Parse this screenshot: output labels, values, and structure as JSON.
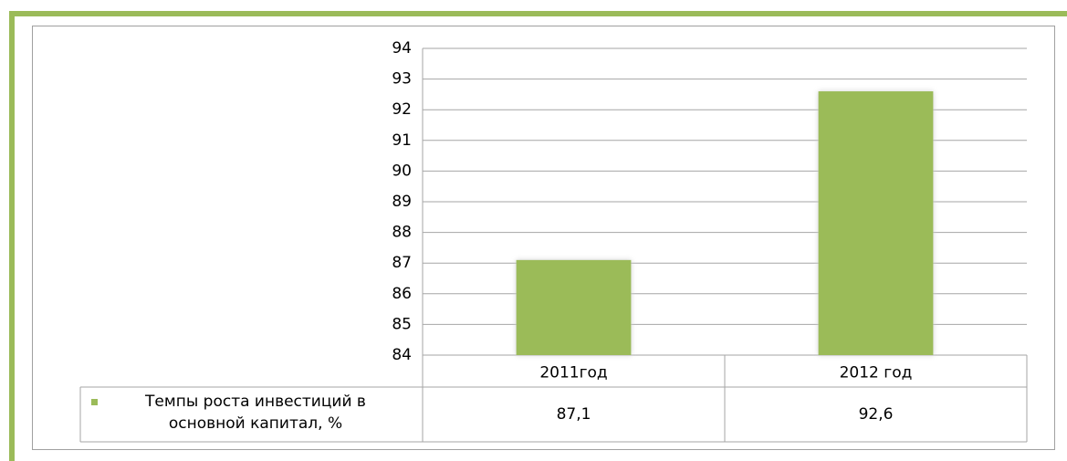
{
  "chart_data": {
    "type": "bar",
    "categories": [
      "2011год",
      "2012 год"
    ],
    "series": [
      {
        "name": "Темпы роста инвестиций в основной капитал, %",
        "color": "#9bbb59",
        "values": [
          87.1,
          92.6
        ],
        "value_labels": [
          "87,1",
          "92,6"
        ]
      }
    ],
    "ylim": [
      84,
      94
    ],
    "yticks": [
      84,
      85,
      86,
      87,
      88,
      89,
      90,
      91,
      92,
      93,
      94
    ],
    "grid": true
  }
}
